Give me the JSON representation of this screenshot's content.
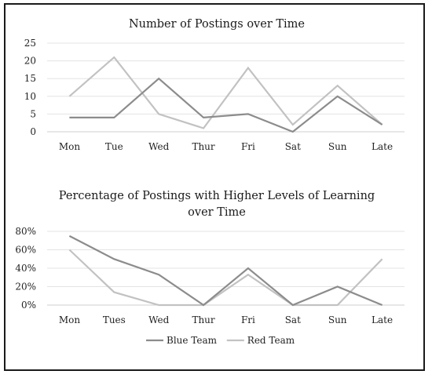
{
  "chart_data": [
    {
      "type": "line",
      "title": "Number of Postings over Time",
      "categories": [
        "Mon",
        "Tue",
        "Wed",
        "Thur",
        "Fri",
        "Sat",
        "Sun",
        "Late"
      ],
      "ylim": [
        0,
        25
      ],
      "yticks": [
        0,
        5,
        10,
        15,
        20,
        25
      ],
      "ytick_labels": [
        "0",
        "5",
        "10",
        "15",
        "20",
        "25"
      ],
      "grid": true,
      "series": [
        {
          "key": "blue",
          "values": [
            4,
            4,
            15,
            4,
            5,
            0,
            10,
            2
          ],
          "color": "#8c8c8c"
        },
        {
          "key": "red",
          "values": [
            10,
            21,
            5,
            1,
            18,
            2,
            13,
            2
          ],
          "color": "#c2c2c2"
        }
      ]
    },
    {
      "type": "line",
      "title": "Percentage of Postings with Higher Levels of Learning over Time",
      "title_lines": [
        "Percentage of Postings with Higher Levels of Learning",
        "over Time"
      ],
      "categories": [
        "Mon",
        "Tues",
        "Wed",
        "Thur",
        "Fri",
        "Sat",
        "Sun",
        "Late"
      ],
      "ylim": [
        0,
        80
      ],
      "yticks": [
        0,
        20,
        40,
        60,
        80
      ],
      "ytick_labels": [
        "0%",
        "20%",
        "40%",
        "60%",
        "80%"
      ],
      "grid": true,
      "legend_position": "bottom",
      "series": [
        {
          "key": "blue",
          "name": "Blue Team",
          "values": [
            75,
            50,
            33,
            0,
            40,
            0,
            20,
            0
          ],
          "color": "#8c8c8c"
        },
        {
          "key": "red",
          "name": "Red Team",
          "values": [
            60,
            14,
            0,
            0,
            33,
            0,
            0,
            50
          ],
          "color": "#c2c2c2"
        }
      ]
    }
  ]
}
